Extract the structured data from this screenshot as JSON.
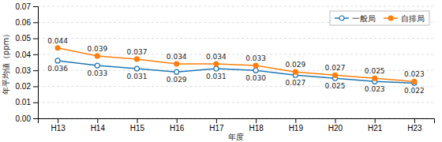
{
  "chart_data": {
    "type": "line",
    "categories": [
      "H13",
      "H14",
      "H15",
      "H16",
      "H17",
      "H18",
      "H19",
      "H20",
      "H21",
      "H23"
    ],
    "series": [
      {
        "name": "一般局",
        "marker": "circle-open",
        "values": [
          0.036,
          0.033,
          0.031,
          0.029,
          0.031,
          0.03,
          0.027,
          0.025,
          0.023,
          0.022
        ],
        "value_labels": [
          "0.036",
          "0.033",
          "0.031",
          "0.029",
          "0.031",
          "0.030",
          "0.027",
          "0.025",
          "0.023",
          "0.022"
        ]
      },
      {
        "name": "自排局",
        "marker": "circle",
        "values": [
          0.044,
          0.039,
          0.037,
          0.034,
          0.034,
          0.033,
          0.029,
          0.027,
          0.025,
          0.023
        ],
        "value_labels": [
          "0.044",
          "0.039",
          "0.037",
          "0.034",
          "0.034",
          "0.033",
          "0.029",
          "0.027",
          "0.025",
          "0.023"
        ]
      }
    ],
    "xlabel": "年度",
    "ylabel": "年平均値（ppm）",
    "ylim": [
      0.0,
      0.07
    ],
    "yticks": [
      {
        "value": 0,
        "label": "0.00"
      },
      0.01,
      0.02,
      0.03,
      0.04,
      0.05,
      0.06,
      0.07
    ],
    "grid": true,
    "legend": "upper right",
    "data_labels": true
  }
}
